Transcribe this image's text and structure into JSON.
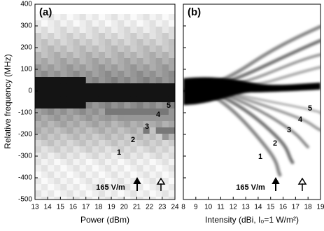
{
  "chart_data": [
    {
      "type": "heatmap",
      "panel_label": "(a)",
      "x_label": "Power (dBm)",
      "y_label": "Relative frequency (MHz)",
      "xlim": [
        13,
        24
      ],
      "xticks": [
        13,
        14,
        15,
        16,
        17,
        18,
        19,
        20,
        21,
        22,
        23,
        24
      ],
      "ylim": [
        -500,
        400
      ],
      "yticks": [
        -500,
        -400,
        -300,
        -200,
        -100,
        0,
        100,
        200,
        300,
        400
      ],
      "annotations": [
        "1",
        "2",
        "3",
        "4",
        "5",
        "165 V/m"
      ]
    },
    {
      "type": "heatmap",
      "panel_label": "(b)",
      "x_label": "Intensity (dBi, I₀=1 W/m²)",
      "xlim": [
        8,
        19
      ],
      "xticks": [
        8,
        9,
        10,
        11,
        12,
        13,
        14,
        15,
        16,
        17,
        18,
        19
      ],
      "annotations": [
        "1",
        "2",
        "3",
        "4",
        "5",
        "165 V/m"
      ]
    }
  ]
}
